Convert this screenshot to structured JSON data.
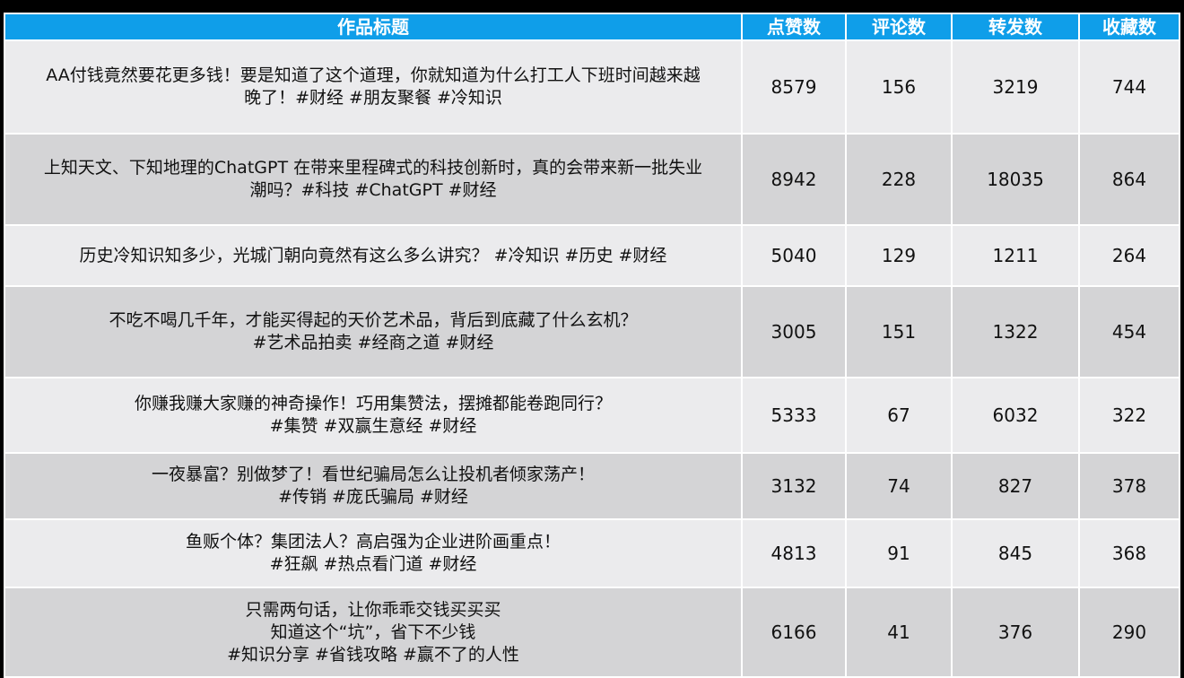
{
  "table": {
    "headers": [
      "作品标题",
      "点赞数",
      "评论数",
      "转发数",
      "收藏数"
    ],
    "rows": [
      {
        "title": [
          "AA付钱竟然要花更多钱！要是知道了这个道理，你就知道为什么打工人下班时间越来越",
          "晚了！#财经 #朋友聚餐 #冷知识"
        ],
        "likes": "8579",
        "comments": "156",
        "shares": "3219",
        "favorites": "744"
      },
      {
        "title": [
          "上知天文、下知地理的ChatGPT 在带来里程碑式的科技创新时，真的会带来新一批失业",
          "潮吗？#科技 #ChatGPT #财经"
        ],
        "likes": "8942",
        "comments": "228",
        "shares": "18035",
        "favorites": "864"
      },
      {
        "title": [
          "历史冷知识知多少，光城门朝向竟然有这么多么讲究？ #冷知识 #历史 #财经"
        ],
        "likes": "5040",
        "comments": "129",
        "shares": "1211",
        "favorites": "264"
      },
      {
        "title": [
          "不吃不喝几千年，才能买得起的天价艺术品，背后到底藏了什么玄机？",
          "#艺术品拍卖 #经商之道 #财经"
        ],
        "likes": "3005",
        "comments": "151",
        "shares": "1322",
        "favorites": "454"
      },
      {
        "title": [
          "你赚我赚大家赚的神奇操作！巧用集赞法，摆摊都能卷跑同行？",
          "#集赞 #双赢生意经 #财经"
        ],
        "likes": "5333",
        "comments": "67",
        "shares": "6032",
        "favorites": "322"
      },
      {
        "title": [
          "一夜暴富？别做梦了！看世纪骗局怎么让投机者倾家荡产！",
          "#传销 #庞氏骗局 #财经"
        ],
        "likes": "3132",
        "comments": "74",
        "shares": "827",
        "favorites": "378"
      },
      {
        "title": [
          "鱼贩个体？集团法人？高启强为企业进阶画重点！",
          "#狂飙 #热点看门道 #财经"
        ],
        "likes": "4813",
        "comments": "91",
        "shares": "845",
        "favorites": "368"
      },
      {
        "title": [
          "只需两句话，让你乖乖交钱买买买",
          "知道这个“坑”，省下不少钱",
          "#知识分享 #省钱攻略 #赢不了的人性"
        ],
        "likes": "6166",
        "comments": "41",
        "shares": "376",
        "favorites": "290"
      }
    ]
  }
}
